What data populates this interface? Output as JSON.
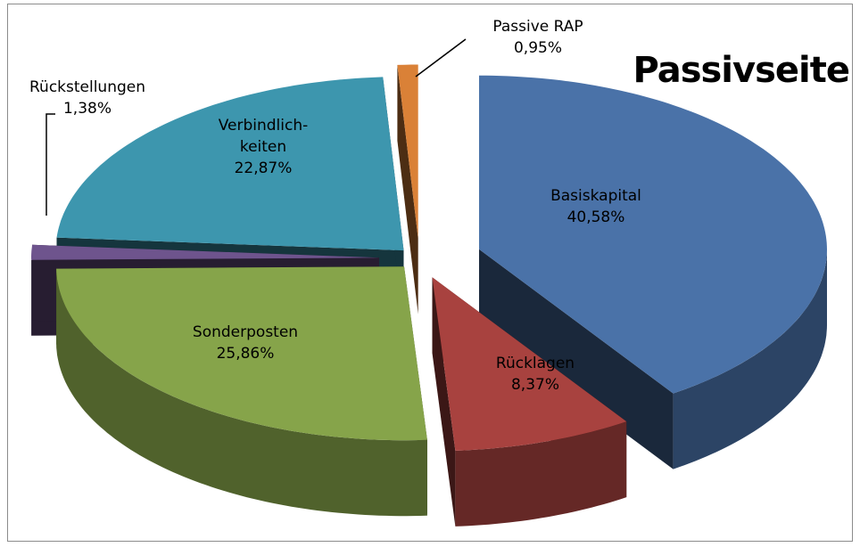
{
  "chart_data": {
    "type": "pie3d",
    "title": "Passivseite",
    "categories": [
      "Basiskapital",
      "Rücklagen",
      "Sonderposten",
      "Rückstellungen",
      "Verbindlich-keiten",
      "Passive RAP"
    ],
    "values": [
      40.58,
      8.37,
      25.86,
      1.38,
      22.87,
      0.95
    ],
    "value_labels": [
      "40,58%",
      "8,37%",
      "25,86%",
      "1,38%",
      "22,87%",
      "0,95%"
    ],
    "colors": [
      "#4a72a8",
      "#a8423f",
      "#86a44a",
      "#6e548d",
      "#3d96ae",
      "#da8137"
    ]
  }
}
